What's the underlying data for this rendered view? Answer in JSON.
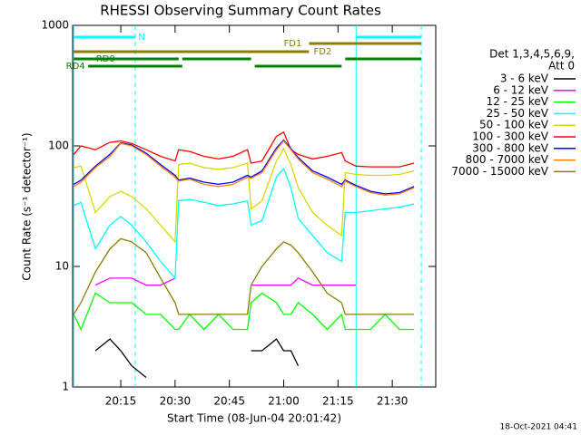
{
  "chart_data": {
    "type": "line",
    "title": "RHESSI Observing Summary Count Rates",
    "x_label": "Start Time (08-Jun-04 20:01:42)",
    "y_label": "Count Rate (s⁻¹ detector⁻¹)",
    "legend_title": [
      "Det 1,3,4,5,6,9,",
      "Att 0"
    ],
    "timestamp": "18-Oct-2021 04:41",
    "log_y": true,
    "xlim": [
      "20:01:42",
      "21:42"
    ],
    "xticks": [
      "20:15",
      "20:30",
      "20:45",
      "21:00",
      "21:15",
      "21:30"
    ],
    "ylim": [
      1,
      1000
    ],
    "yticks": [
      1,
      10,
      100,
      1000
    ],
    "x": [
      "20:02",
      "20:04",
      "20:08",
      "20:12",
      "20:15",
      "20:18",
      "20:22",
      "20:26",
      "20:30",
      "20:31",
      "20:34",
      "20:38",
      "20:42",
      "20:46",
      "20:50",
      "20:51",
      "20:54",
      "20:58",
      "21:00",
      "21:02",
      "21:04",
      "21:08",
      "21:12",
      "21:16",
      "21:17",
      "21:20",
      "21:24",
      "21:28",
      "21:32",
      "21:36"
    ],
    "series": [
      {
        "name": "3 - 6 keV",
        "color": "#000000",
        "values": [
          null,
          null,
          2,
          2.5,
          2,
          1.5,
          1.2,
          null,
          null,
          null,
          null,
          null,
          null,
          null,
          null,
          2,
          2,
          2.5,
          2,
          2,
          1.5,
          null,
          null,
          null,
          null,
          null,
          null,
          null,
          null,
          null
        ]
      },
      {
        "name": "6 - 12 keV",
        "color": "#ff00ff",
        "values": [
          null,
          null,
          7,
          8,
          8,
          8,
          7,
          7,
          8,
          null,
          null,
          null,
          null,
          null,
          null,
          7,
          7,
          7,
          7,
          7,
          8,
          7,
          7,
          7,
          7,
          7,
          null,
          null,
          null,
          null
        ]
      },
      {
        "name": "12 - 25 keV",
        "color": "#00ff00",
        "values": [
          4,
          3,
          6,
          5,
          5,
          5,
          4,
          4,
          3,
          3,
          4,
          3,
          4,
          3,
          3,
          5,
          6,
          5,
          4,
          4,
          5,
          4,
          3,
          4,
          3,
          3,
          3,
          4,
          3,
          3
        ]
      },
      {
        "name": "25 - 50 keV",
        "color": "#00ffff",
        "values": [
          32,
          34,
          14,
          22,
          26,
          22,
          16,
          11,
          8,
          35,
          36,
          34,
          32,
          33,
          35,
          22,
          24,
          55,
          65,
          45,
          25,
          18,
          13,
          11,
          28,
          28,
          29,
          30,
          31,
          33
        ]
      },
      {
        "name": "50 - 100 keV",
        "color": "#d8d800",
        "values": [
          66,
          68,
          28,
          38,
          42,
          38,
          30,
          22,
          16,
          70,
          72,
          66,
          64,
          66,
          72,
          30,
          35,
          75,
          95,
          70,
          45,
          28,
          22,
          18,
          60,
          58,
          57,
          57,
          58,
          62
        ]
      },
      {
        "name": "100 - 300 keV",
        "color": "#ff0000",
        "values": [
          85,
          100,
          93,
          107,
          110,
          105,
          93,
          82,
          75,
          93,
          90,
          82,
          78,
          82,
          93,
          72,
          75,
          120,
          130,
          93,
          85,
          78,
          82,
          88,
          75,
          68,
          67,
          67,
          67,
          72
        ]
      },
      {
        "name": "300 - 800 keV",
        "color": "#0000ff",
        "values": [
          48,
          52,
          68,
          85,
          106,
          102,
          87,
          70,
          57,
          52,
          54,
          50,
          48,
          50,
          57,
          55,
          62,
          96,
          112,
          95,
          80,
          62,
          55,
          48,
          52,
          47,
          42,
          40,
          41,
          46
        ]
      },
      {
        "name": "800 - 7000 keV",
        "color": "#ff8000",
        "values": [
          46,
          50,
          66,
          82,
          105,
          100,
          85,
          68,
          55,
          51,
          53,
          48,
          46,
          48,
          55,
          54,
          60,
          93,
          110,
          93,
          78,
          60,
          53,
          46,
          51,
          46,
          41,
          39,
          40,
          45
        ]
      },
      {
        "name": "7000 - 15000 keV",
        "color": "#8b7d00",
        "values": [
          4,
          5,
          9,
          14,
          17,
          16,
          13,
          8,
          5,
          4,
          4,
          4,
          4,
          4,
          4,
          7,
          10,
          14,
          16,
          15,
          13,
          9,
          6,
          5,
          4,
          4,
          4,
          4,
          4,
          4
        ]
      }
    ],
    "flags": [
      {
        "label": "N",
        "color": "#00ffff",
        "spans": [
          [
            "20:02",
            "20:19"
          ],
          [
            "21:20",
            "21:38"
          ]
        ]
      },
      {
        "label": "FD1",
        "color": "#8b7d00",
        "spans": [
          [
            "21:07",
            "21:38"
          ]
        ]
      },
      {
        "label": "FD2",
        "color": "#8b7d00",
        "spans": [
          [
            "20:02",
            "21:07"
          ]
        ]
      },
      {
        "label": "RD0",
        "color": "#008000",
        "spans": [
          [
            "20:02",
            "20:31"
          ],
          [
            "20:32",
            "20:51"
          ],
          [
            "21:17",
            "21:38"
          ]
        ]
      },
      {
        "label": "RD4",
        "color": "#008000",
        "spans": [
          [
            "20:06",
            "20:32"
          ],
          [
            "20:52",
            "21:16"
          ]
        ]
      }
    ]
  }
}
